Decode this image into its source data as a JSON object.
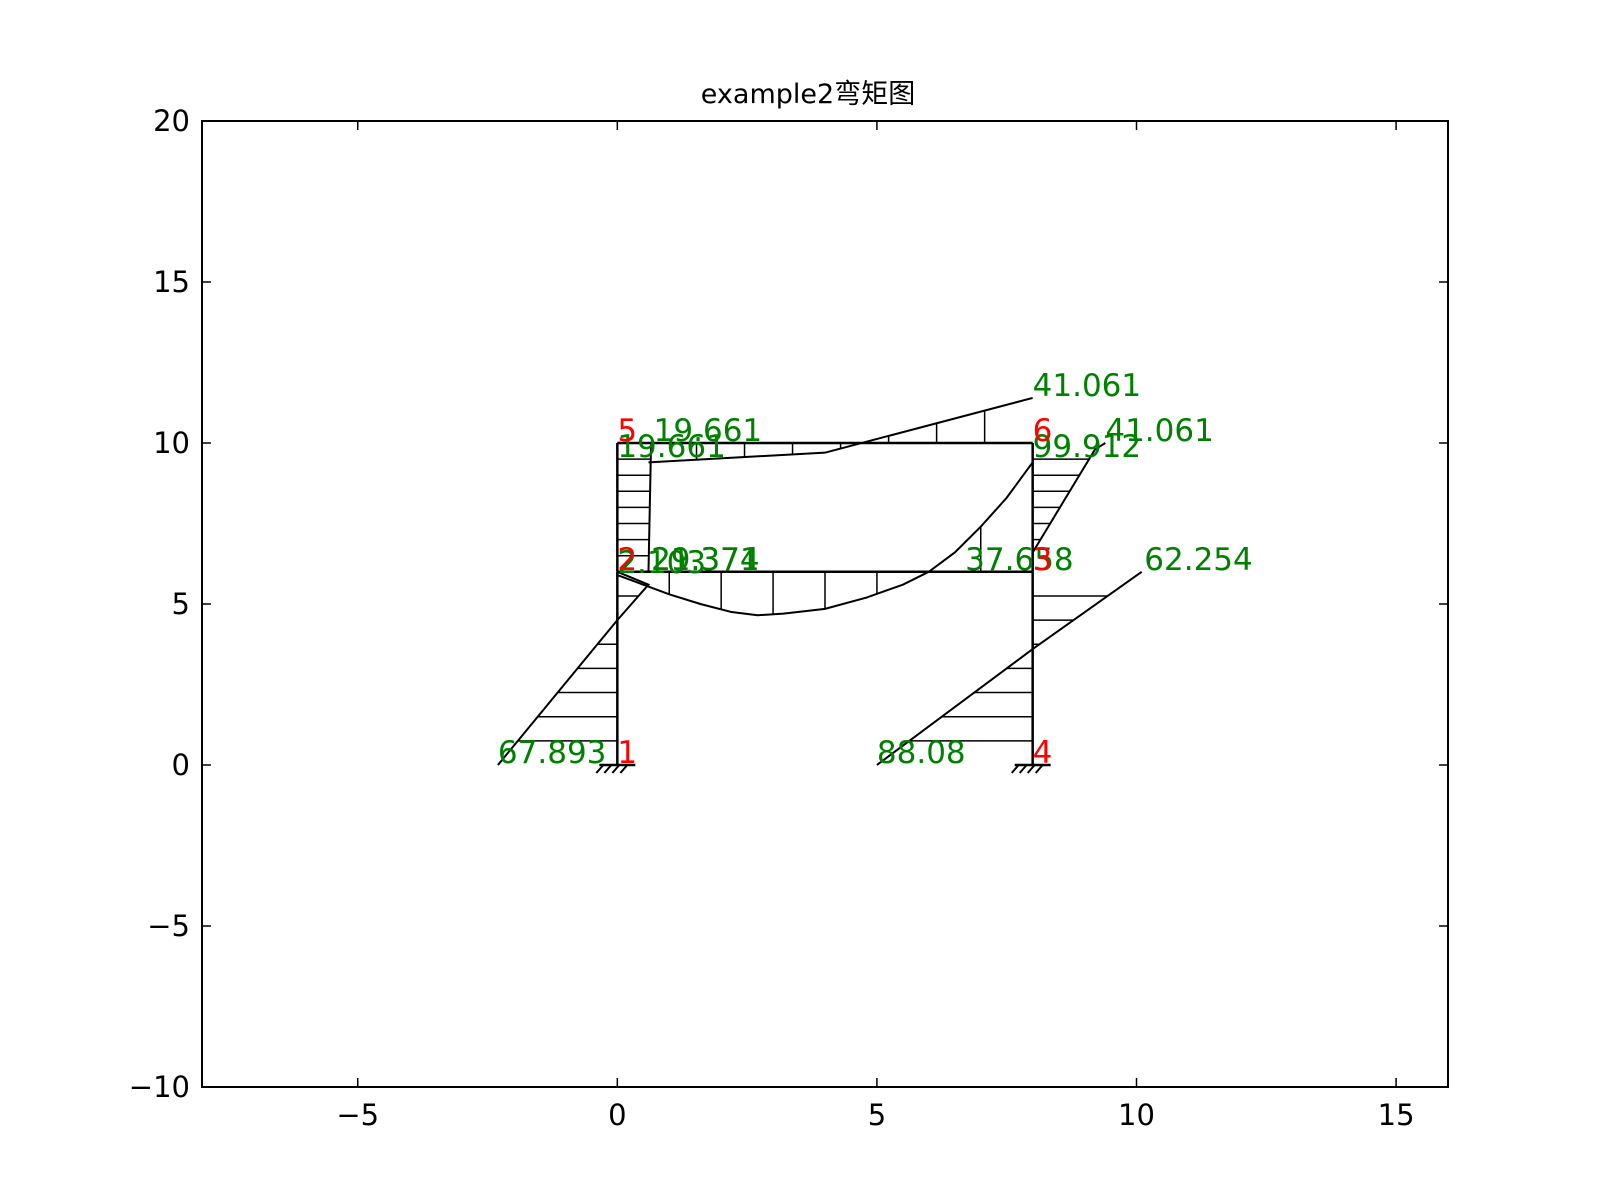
{
  "chart_data": {
    "type": "line",
    "title": "example2弯矩图",
    "xlabel": "",
    "ylabel": "",
    "xlim": [
      -8,
      16
    ],
    "ylim": [
      -10,
      20
    ],
    "xticks": [
      -5,
      0,
      5,
      10,
      15
    ],
    "yticks": [
      -10,
      -5,
      0,
      5,
      10,
      15,
      20
    ],
    "xtick_labels": [
      "−5",
      "0",
      "5",
      "10",
      "15"
    ],
    "ytick_labels": [
      "−10",
      "−5",
      "0",
      "5",
      "10",
      "15",
      "20"
    ],
    "grid": false,
    "colors": {
      "frame": "#000000",
      "value_labels": "#008000",
      "node_labels": "#ff0000"
    },
    "members": [
      {
        "from": [
          0,
          0
        ],
        "to": [
          0,
          6
        ]
      },
      {
        "from": [
          0,
          6
        ],
        "to": [
          0,
          10
        ]
      },
      {
        "from": [
          8,
          0
        ],
        "to": [
          8,
          6
        ]
      },
      {
        "from": [
          8,
          6
        ],
        "to": [
          8,
          10
        ]
      },
      {
        "from": [
          0,
          6
        ],
        "to": [
          8,
          6
        ]
      },
      {
        "from": [
          0,
          10
        ],
        "to": [
          8,
          10
        ]
      }
    ],
    "supports": [
      {
        "node": "1",
        "x": 0,
        "y": 0,
        "type": "fixed"
      },
      {
        "node": "4",
        "x": 8,
        "y": 0,
        "type": "fixed"
      }
    ],
    "moment_diagram": [
      {
        "name": "column 1-2",
        "line": [
          [
            -2.3,
            0
          ],
          [
            0,
            4.5
          ],
          [
            0.6,
            5.6
          ],
          [
            0,
            6
          ]
        ],
        "hatch": "horizontal",
        "hatch_range": [
          0,
          6
        ]
      },
      {
        "name": "column 2-5",
        "line": [
          [
            0,
            10
          ],
          [
            0.65,
            10
          ],
          [
            0.6,
            6
          ],
          [
            0,
            6
          ]
        ],
        "hatch": "horizontal",
        "hatch_range": [
          6,
          10
        ]
      },
      {
        "name": "column 4-3",
        "line": [
          [
            5,
            0
          ],
          [
            8,
            3.6
          ],
          [
            10.1,
            6
          ]
        ],
        "hatch": "horizontal",
        "hatch_range": [
          0,
          6
        ]
      },
      {
        "name": "column 3-6",
        "line": [
          [
            8,
            6.6
          ],
          [
            9.2,
            9.8
          ],
          [
            9.4,
            10
          ]
        ],
        "hatch": "horizontal",
        "hatch_range": [
          6,
          10
        ]
      },
      {
        "name": "beam 2-3",
        "curve": [
          [
            0,
            5.9
          ],
          [
            0.5,
            5.6
          ],
          [
            1,
            5.3
          ],
          [
            1.6,
            5.0
          ],
          [
            2.2,
            4.75
          ],
          [
            2.7,
            4.65
          ],
          [
            3.2,
            4.7
          ],
          [
            4,
            4.85
          ],
          [
            4.8,
            5.2
          ],
          [
            5.5,
            5.6
          ],
          [
            6,
            6.0
          ],
          [
            6.5,
            6.6
          ],
          [
            7,
            7.4
          ],
          [
            7.5,
            8.3
          ],
          [
            8,
            9.4
          ]
        ],
        "hatch": "vertical",
        "hatch_range": [
          0,
          8
        ]
      },
      {
        "name": "beam 5-6",
        "line": [
          [
            0.6,
            9.4
          ],
          [
            4,
            9.7
          ],
          [
            8,
            11.4
          ]
        ],
        "hatch": "vertical",
        "hatch_range": [
          0.6,
          8
        ]
      }
    ],
    "value_labels": [
      {
        "text": "41.061",
        "x": 8.0,
        "y": 11.4
      },
      {
        "text": "41.061",
        "x": 9.4,
        "y": 10.0
      },
      {
        "text": "19.661",
        "x": 0.7,
        "y": 10.0
      },
      {
        "text": "19.661",
        "x": 0.0,
        "y": 9.5
      },
      {
        "text": "99.912",
        "x": 8.0,
        "y": 9.5
      },
      {
        "text": "2.103",
        "x": 0.0,
        "y": 5.9
      },
      {
        "text": "21.371",
        "x": 0.65,
        "y": 6.0
      },
      {
        "text": "29.374",
        "x": 0.65,
        "y": 6.0
      },
      {
        "text": "37.658",
        "x": 6.7,
        "y": 6.0
      },
      {
        "text": "62.254",
        "x": 10.15,
        "y": 6.0
      },
      {
        "text": "67.893",
        "x": -2.3,
        "y": 0.0
      },
      {
        "text": "88.08",
        "x": 5.0,
        "y": 0.0
      }
    ],
    "node_labels": [
      {
        "text": "1",
        "x": 0,
        "y": 0
      },
      {
        "text": "2",
        "x": 0,
        "y": 6
      },
      {
        "text": "3",
        "x": 8,
        "y": 6
      },
      {
        "text": "4",
        "x": 8,
        "y": 0
      },
      {
        "text": "5",
        "x": 0,
        "y": 10
      },
      {
        "text": "6",
        "x": 8,
        "y": 10
      }
    ]
  }
}
